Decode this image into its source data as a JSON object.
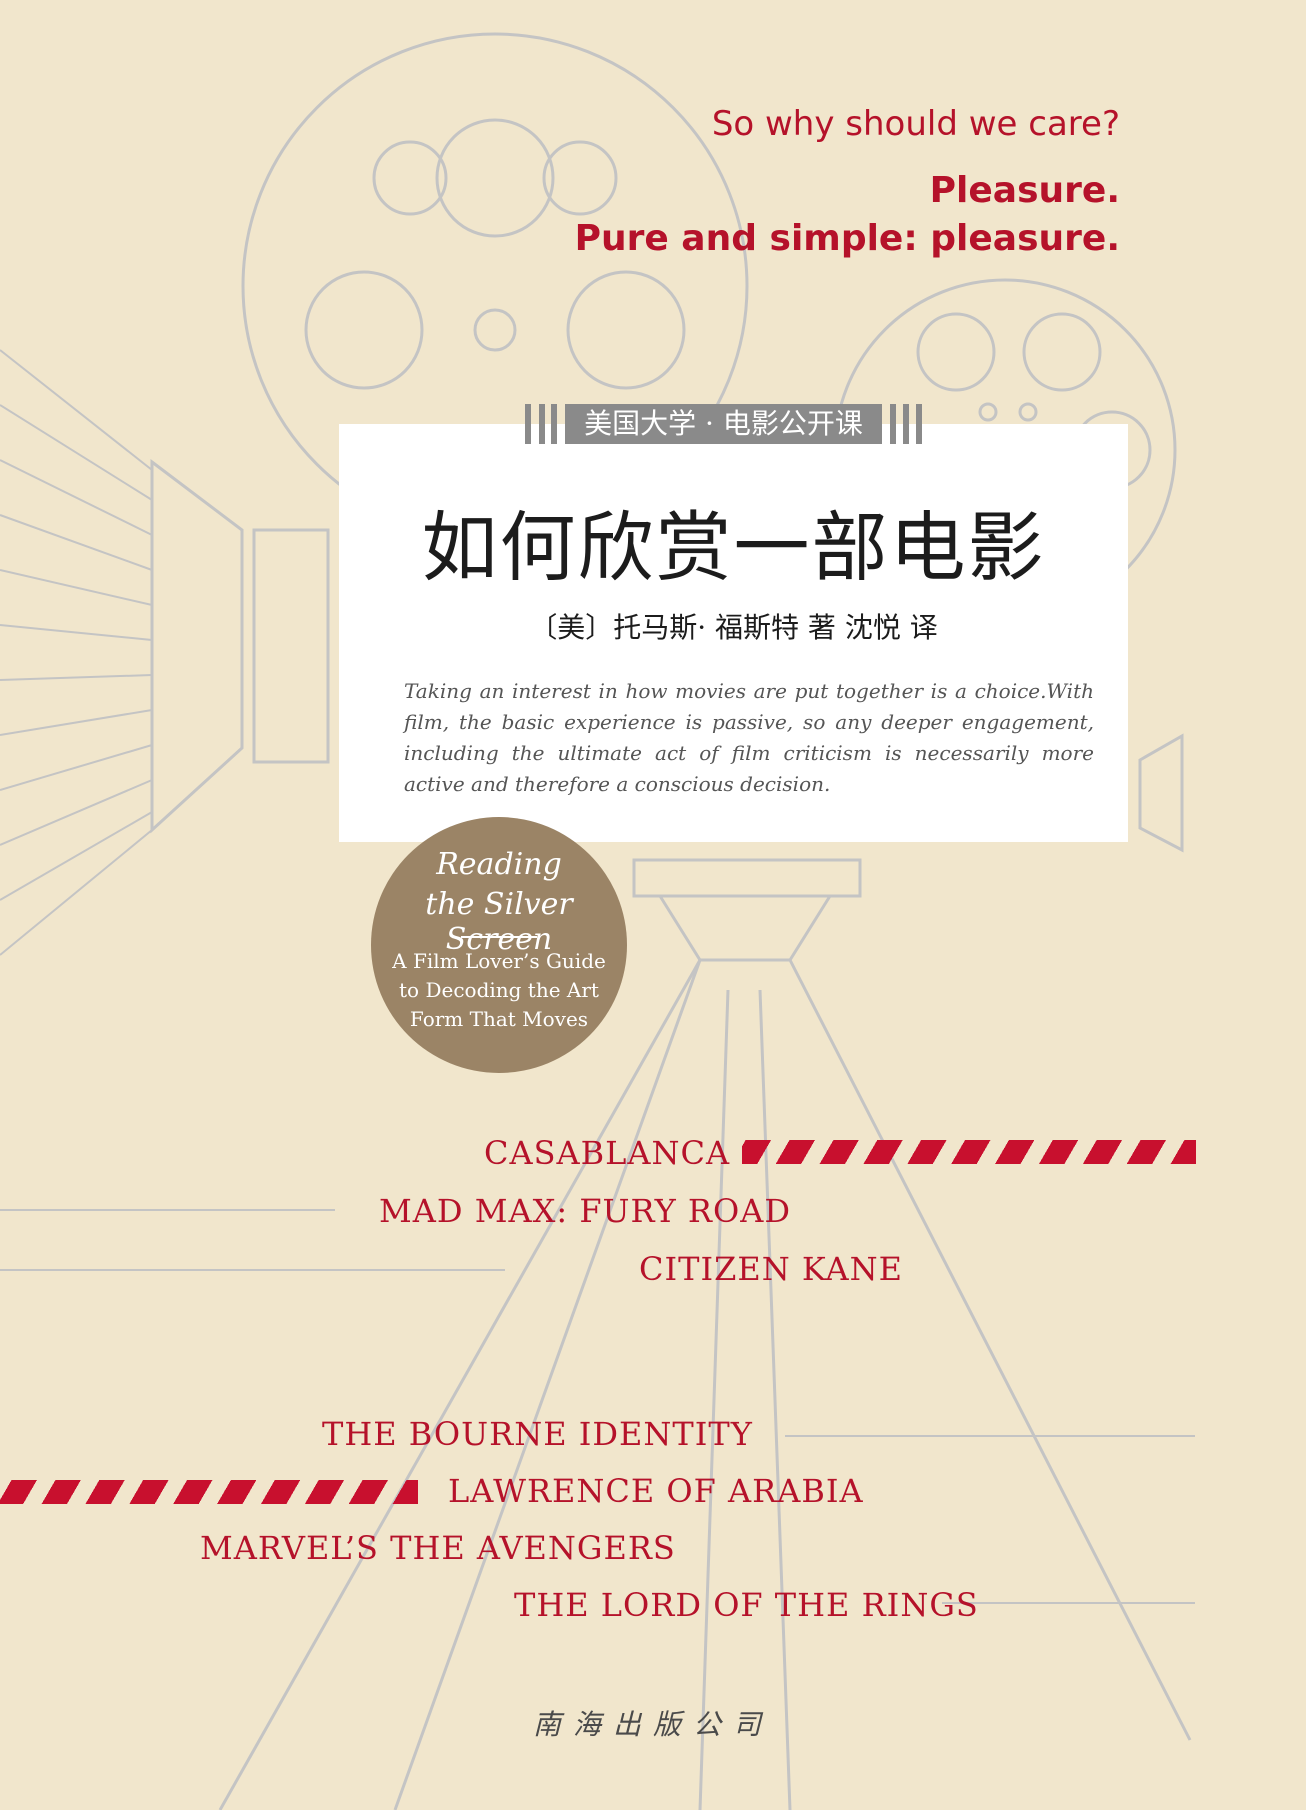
{
  "tagline": {
    "question": "So why should we care?",
    "answer_line1": "Pleasure.",
    "answer_line2": "Pure and simple: pleasure."
  },
  "series": "美国大学 · 电影公开课",
  "title_zh": "如何欣赏一部电影",
  "author_line": "〔美〕托马斯· 福斯特 著 沈悦 译",
  "blurb": "Taking an interest in how movies are put together is a choice.With film, the basic experience is passive, so any deeper engagement, including the ultimate act of film criticism is necessarily more active and therefore a conscious decision.",
  "badge": {
    "title_line1": "Reading",
    "title_line2": "the Silver Screen",
    "subtitle": "A Film Lover’s Guide to Decoding the Art Form That Moves"
  },
  "films": [
    "CASABLANCA",
    "MAD MAX: FURY ROAD",
    "CITIZEN KANE",
    "THE BOURNE IDENTITY",
    "LAWRENCE OF ARABIA",
    "MARVEL’S THE AVENGERS",
    "THE LORD OF THE RINGS"
  ],
  "publisher": "南海出版公司",
  "colors": {
    "background": "#f1e6cc",
    "accent_red": "#b5122a",
    "line_art": "#c4c4c4",
    "badge": "#9b8466",
    "series_bar": "#8a8a8a"
  }
}
